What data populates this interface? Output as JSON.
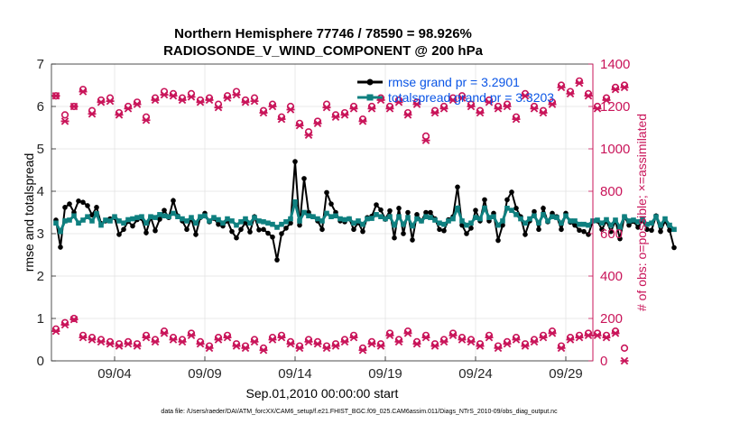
{
  "chart_data": {
    "type": "line",
    "title": "Northern Hemisphere 77746 / 78590 = 98.926%",
    "subtitle": "RADIOSONDE_V_WIND_COMPONENT @ 200 hPa",
    "xlabel": "Sep.01,2010 00:00:00 start",
    "ylabel_left": "rmse and totalspread",
    "ylabel_right": "# of obs: o=possible; ×=assimilated",
    "xlim": [
      0.5,
      30.5
    ],
    "ylim_left": [
      0,
      7
    ],
    "ylim_right": [
      0,
      1400
    ],
    "x_ticks": [
      {
        "x": 4,
        "label": "09/04"
      },
      {
        "x": 9,
        "label": "09/09"
      },
      {
        "x": 14,
        "label": "09/14"
      },
      {
        "x": 19,
        "label": "09/19"
      },
      {
        "x": 24,
        "label": "09/24"
      },
      {
        "x": 29,
        "label": "09/29"
      }
    ],
    "y_ticks_left": [
      "0",
      "1",
      "2",
      "3",
      "4",
      "5",
      "6",
      "7"
    ],
    "y_ticks_right": [
      "0",
      "200",
      "400",
      "600",
      "800",
      "1000",
      "1200",
      "1400"
    ],
    "legend": [
      "rmse grand pr = 3.2901",
      "totalspread grand pr = 3.3203"
    ],
    "footnote": "data file: /Users/raeder/DAI/ATM_forcXX/CAM6_setup/f.e21.FHIST_BGC.f09_025.CAM6assim.011/Diags_NTrS_2010-09/obs_diag_output.nc",
    "colors": {
      "rmse": "#000000",
      "spread": "#0f8080",
      "obs": "#c9155a",
      "grid": "#e3e3e3",
      "axis_right": "#c9155a"
    },
    "series": [
      {
        "name": "rmse",
        "axis": "left",
        "x_start": 0.75,
        "x_step": 0.25,
        "values": [
          3.32,
          2.68,
          3.62,
          3.7,
          3.5,
          3.77,
          3.74,
          3.66,
          3.44,
          3.62,
          3.24,
          3.3,
          3.35,
          3.38,
          2.98,
          3.1,
          3.29,
          3.18,
          3.33,
          3.36,
          3.02,
          3.39,
          3.07,
          3.34,
          3.55,
          3.38,
          3.78,
          3.42,
          3.3,
          3.1,
          3.35,
          2.98,
          3.38,
          3.48,
          3.28,
          3.36,
          3.22,
          3.18,
          3.3,
          3.05,
          2.9,
          3.1,
          3.26,
          3.04,
          3.4,
          3.09,
          3.1,
          3.01,
          2.92,
          2.38,
          3.0,
          3.13,
          3.25,
          4.7,
          3.2,
          4.3,
          3.5,
          3.4,
          3.3,
          3.1,
          3.97,
          3.7,
          3.5,
          3.3,
          3.28,
          3.35,
          3.1,
          3.26,
          3.05,
          3.38,
          3.41,
          3.68,
          3.56,
          3.34,
          3.54,
          2.9,
          3.6,
          3.0,
          3.5,
          2.85,
          3.45,
          3.3,
          3.5,
          3.5,
          3.35,
          3.1,
          3.07,
          3.33,
          3.4,
          4.1,
          3.2,
          3.0,
          3.13,
          3.55,
          3.3,
          3.8,
          3.3,
          3.48,
          2.84,
          3.2,
          3.8,
          3.98,
          3.6,
          3.4,
          2.98,
          3.3,
          3.52,
          3.1,
          3.6,
          3.28,
          3.48,
          3.4,
          3.1,
          3.48,
          3.27,
          3.2,
          3.08,
          3.05,
          2.98,
          3.3,
          3.3,
          3.1,
          3.3,
          3.05,
          3.3,
          2.88,
          3.4,
          3.2,
          3.29,
          3.15,
          3.32,
          3.1,
          3.08,
          3.42,
          3.05,
          3.3,
          3.08,
          2.67
        ]
      },
      {
        "name": "totalspread",
        "axis": "left",
        "x_start": 0.75,
        "x_step": 0.25,
        "values": [
          3.25,
          3.05,
          3.3,
          3.32,
          3.42,
          3.25,
          3.32,
          3.4,
          3.3,
          3.47,
          3.2,
          3.32,
          3.3,
          3.4,
          3.3,
          3.25,
          3.33,
          3.35,
          3.38,
          3.4,
          3.25,
          3.4,
          3.38,
          3.45,
          3.42,
          3.4,
          3.48,
          3.4,
          3.35,
          3.3,
          3.38,
          3.25,
          3.4,
          3.42,
          3.3,
          3.38,
          3.33,
          3.25,
          3.35,
          3.3,
          3.2,
          3.28,
          3.35,
          3.25,
          3.38,
          3.3,
          3.28,
          3.25,
          3.22,
          3.15,
          3.22,
          3.28,
          3.35,
          3.75,
          3.3,
          3.5,
          3.42,
          3.4,
          3.35,
          3.3,
          3.48,
          3.4,
          3.42,
          3.35,
          3.33,
          3.35,
          3.25,
          3.3,
          3.22,
          3.35,
          3.36,
          3.45,
          3.4,
          3.35,
          3.4,
          3.2,
          3.4,
          3.22,
          3.38,
          3.18,
          3.35,
          3.3,
          3.4,
          3.38,
          3.32,
          3.25,
          3.22,
          3.3,
          3.35,
          3.6,
          3.3,
          3.2,
          3.25,
          3.38,
          3.35,
          3.6,
          3.38,
          3.4,
          3.2,
          3.3,
          3.6,
          3.55,
          3.45,
          3.35,
          3.25,
          3.35,
          3.42,
          3.25,
          3.45,
          3.3,
          3.4,
          3.38,
          3.25,
          3.42,
          3.3,
          3.3,
          3.22,
          3.22,
          3.2,
          3.3,
          3.32,
          3.25,
          3.33,
          3.2,
          3.32,
          3.15,
          3.4,
          3.3,
          3.32,
          3.28,
          3.35,
          3.22,
          3.25,
          3.4,
          3.2,
          3.35,
          3.2,
          3.1
        ]
      },
      {
        "name": "obs_possible_200hPa",
        "axis": "right",
        "x_start": 0.75,
        "x_step": 0.5,
        "values": [
          1250,
          1160,
          1200,
          1280,
          1180,
          1230,
          1240,
          1170,
          1200,
          1220,
          1150,
          1240,
          1270,
          1260,
          1240,
          1260,
          1230,
          1240,
          1210,
          1250,
          1270,
          1230,
          1240,
          1180,
          1210,
          1150,
          1200,
          1120,
          1080,
          1130,
          1210,
          1160,
          1170,
          1200,
          1140,
          1200,
          1240,
          1200,
          1230,
          1170,
          1220,
          1060,
          1180,
          1200,
          1240,
          1250,
          1210,
          1180,
          1230,
          1200,
          1210,
          1150,
          1260,
          1200,
          1180,
          1220,
          1300,
          1270,
          1320,
          1260,
          1200,
          1240,
          1290,
          1300
        ]
      },
      {
        "name": "obs_assimilated_200hPa",
        "axis": "right",
        "x_start": 0.75,
        "x_step": 0.5,
        "values": [
          1250,
          1130,
          1200,
          1270,
          1165,
          1220,
          1225,
          1160,
          1190,
          1210,
          1135,
          1230,
          1255,
          1250,
          1230,
          1245,
          1220,
          1230,
          1195,
          1240,
          1255,
          1220,
          1225,
          1170,
          1200,
          1140,
          1185,
          1110,
          1065,
          1120,
          1195,
          1150,
          1160,
          1190,
          1130,
          1190,
          1230,
          1190,
          1220,
          1160,
          1210,
          1040,
          1170,
          1190,
          1230,
          1240,
          1200,
          1170,
          1220,
          1190,
          1200,
          1140,
          1250,
          1190,
          1170,
          1210,
          1290,
          1260,
          1310,
          1250,
          1190,
          1230,
          1280,
          1290
        ]
      },
      {
        "name": "obs_possible_bottom",
        "axis": "right",
        "x_start": 0.75,
        "x_step": 0.5,
        "values": [
          150,
          180,
          200,
          120,
          110,
          100,
          90,
          80,
          90,
          80,
          120,
          100,
          140,
          110,
          100,
          130,
          90,
          70,
          110,
          120,
          80,
          70,
          100,
          60,
          110,
          120,
          90,
          70,
          100,
          90,
          70,
          80,
          100,
          120,
          60,
          90,
          80,
          130,
          100,
          140,
          90,
          120,
          80,
          100,
          130,
          110,
          100,
          80,
          120,
          70,
          90,
          110,
          80,
          100,
          120,
          140,
          70,
          110,
          120,
          130,
          130,
          120,
          140,
          60
        ]
      },
      {
        "name": "obs_assimilated_bottom",
        "axis": "right",
        "x_start": 0.75,
        "x_step": 0.5,
        "values": [
          140,
          170,
          195,
          110,
          100,
          90,
          80,
          70,
          80,
          70,
          110,
          90,
          130,
          100,
          90,
          120,
          80,
          60,
          100,
          110,
          70,
          60,
          90,
          50,
          100,
          110,
          80,
          60,
          90,
          80,
          60,
          70,
          90,
          110,
          50,
          80,
          70,
          120,
          90,
          130,
          80,
          110,
          70,
          90,
          120,
          100,
          90,
          70,
          110,
          60,
          80,
          100,
          70,
          90,
          110,
          130,
          60,
          100,
          110,
          120,
          120,
          110,
          130,
          0
        ]
      }
    ]
  }
}
